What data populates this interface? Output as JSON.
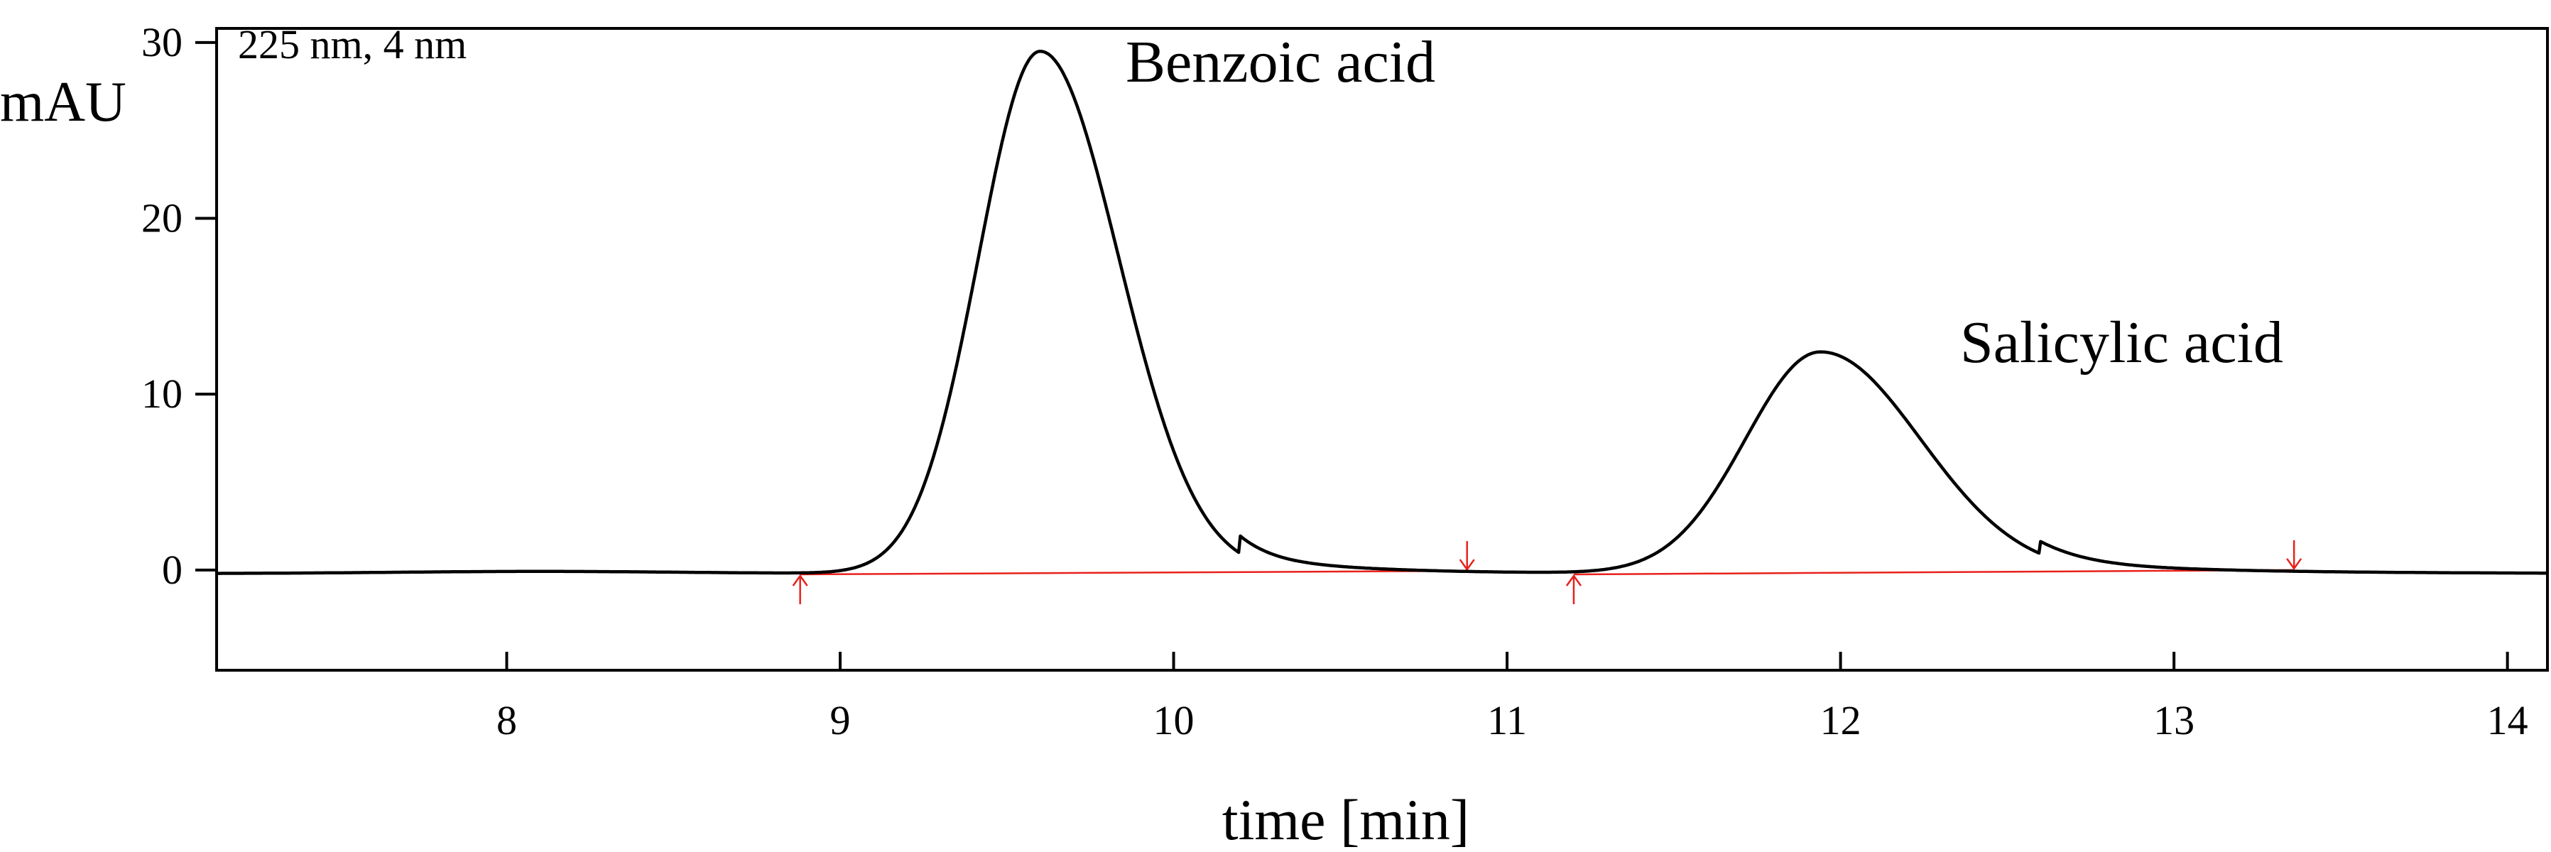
{
  "chart_data": {
    "type": "line",
    "title": "",
    "xlabel": "time [min]",
    "ylabel": "mAU",
    "xlim": [
      7.13,
      14.12
    ],
    "ylim": [
      -5.7,
      30.8
    ],
    "x_ticks": [
      8,
      9,
      10,
      11,
      12,
      13,
      14
    ],
    "y_ticks": [
      0,
      10,
      20,
      30
    ],
    "grid": false,
    "corner_label": "225 nm, 4 nm",
    "series": [
      {
        "color": "#000000",
        "peaks": [
          {
            "label": "Benzoic acid",
            "retention_time": 9.6,
            "height": 29.5
          },
          {
            "label": "Salicylic acid",
            "retention_time": 11.94,
            "height": 12.4
          }
        ]
      }
    ],
    "integration_baselines": [
      {
        "start": [
          8.88,
          -0.25
        ],
        "end": [
          10.88,
          -0.05
        ],
        "color": "#e8211b"
      },
      {
        "start": [
          11.2,
          -0.25
        ],
        "end": [
          13.36,
          0.0
        ],
        "color": "#e8211b"
      }
    ]
  }
}
